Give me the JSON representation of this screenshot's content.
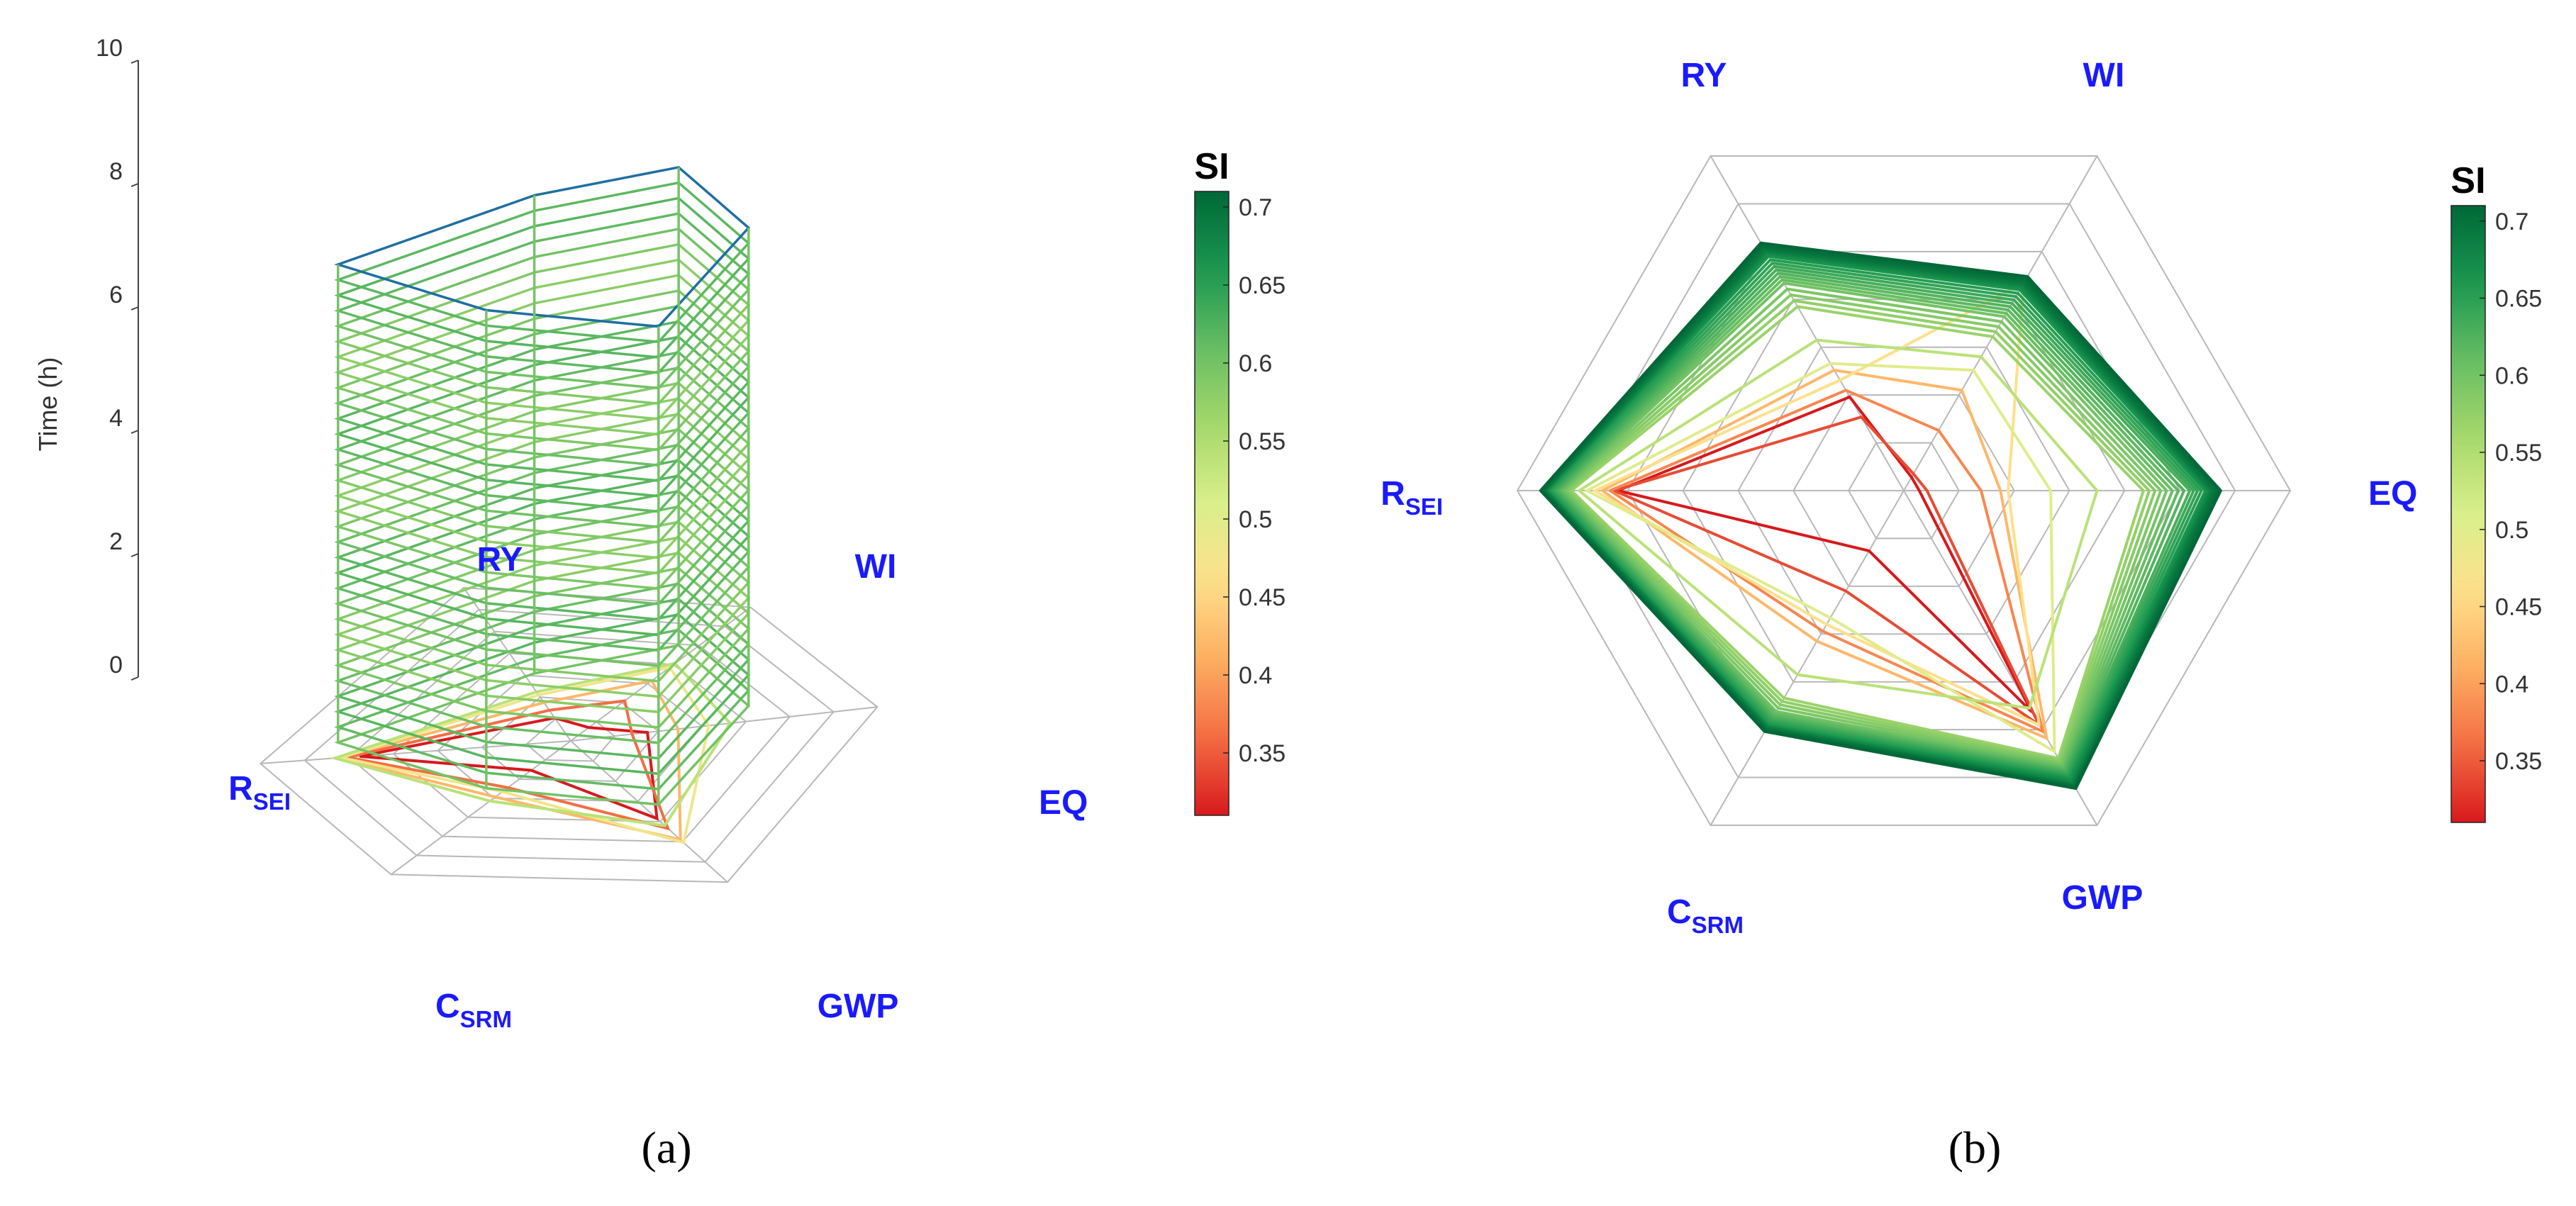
{
  "figure": {
    "panel_a_label": "(a)",
    "panel_b_label": "(b)"
  },
  "chart_data": [
    {
      "type": "radar-3d",
      "panel": "a",
      "title": "",
      "axes": [
        {
          "main": "RY",
          "sub": ""
        },
        {
          "main": "WI",
          "sub": ""
        },
        {
          "main": "EQ",
          "sub": ""
        },
        {
          "main": "GWP",
          "sub": ""
        },
        {
          "main": "C",
          "sub": "SRM"
        },
        {
          "main": "R",
          "sub": "SEI"
        }
      ],
      "zlabel": "Time (h)",
      "zticks": [
        "0",
        "2",
        "4",
        "6",
        "8",
        "10"
      ],
      "zlim": [
        0,
        10
      ],
      "rings": 7,
      "time_start": 0.25,
      "time_end": 8.0,
      "time_step": 0.25,
      "prism_profile": [
        0.34,
        0.6,
        0.58,
        0.56,
        0.47,
        0.75
      ],
      "colorbar": {
        "label": "SI",
        "ticks": [
          "0.35",
          "0.4",
          "0.45",
          "0.5",
          "0.55",
          "0.6",
          "0.65",
          "0.7"
        ],
        "range": [
          0.31,
          0.71
        ]
      },
      "colormap": [
        "#d7191c",
        "#f46d43",
        "#fdae61",
        "#fee08b",
        "#d9ef8b",
        "#a6d96a",
        "#66bd63",
        "#1a9850",
        "#006837"
      ]
    },
    {
      "type": "radar",
      "panel": "b",
      "title": "",
      "axes": [
        {
          "main": "RY",
          "sub": ""
        },
        {
          "main": "WI",
          "sub": ""
        },
        {
          "main": "EQ",
          "sub": ""
        },
        {
          "main": "GWP",
          "sub": ""
        },
        {
          "main": "C",
          "sub": "SRM"
        },
        {
          "main": "R",
          "sub": "SEI"
        }
      ],
      "rlim": [
        0,
        1
      ],
      "rings": 7,
      "profiles": [
        {
          "si": 0.31,
          "values": [
            0.28,
            0.04,
            0.04,
            0.66,
            0.18,
            0.74
          ]
        },
        {
          "si": 0.34,
          "values": [
            0.22,
            0.05,
            0.06,
            0.7,
            0.3,
            0.75
          ]
        },
        {
          "si": 0.38,
          "values": [
            0.3,
            0.18,
            0.2,
            0.72,
            0.42,
            0.76
          ]
        },
        {
          "si": 0.42,
          "values": [
            0.36,
            0.3,
            0.25,
            0.74,
            0.45,
            0.78
          ]
        },
        {
          "si": 0.46,
          "values": [
            0.33,
            0.62,
            0.27,
            0.7,
            0.4,
            0.8
          ]
        },
        {
          "si": 0.5,
          "values": [
            0.38,
            0.36,
            0.38,
            0.78,
            0.38,
            0.82
          ]
        },
        {
          "si": 0.54,
          "values": [
            0.45,
            0.4,
            0.5,
            0.65,
            0.55,
            0.84
          ]
        },
        {
          "si": 0.57,
          "values": [
            0.55,
            0.46,
            0.62,
            0.8,
            0.62,
            0.86
          ]
        },
        {
          "si": 0.6,
          "values": [
            0.62,
            0.52,
            0.68,
            0.82,
            0.66,
            0.88
          ]
        },
        {
          "si": 0.63,
          "values": [
            0.66,
            0.56,
            0.74,
            0.84,
            0.68,
            0.9
          ]
        },
        {
          "si": 0.66,
          "values": [
            0.7,
            0.6,
            0.78,
            0.86,
            0.7,
            0.92
          ]
        },
        {
          "si": 0.69,
          "values": [
            0.72,
            0.62,
            0.8,
            0.88,
            0.71,
            0.93
          ]
        },
        {
          "si": 0.71,
          "values": [
            0.74,
            0.64,
            0.82,
            0.89,
            0.72,
            0.94
          ]
        }
      ],
      "colorbar": {
        "label": "SI",
        "ticks": [
          "0.35",
          "0.4",
          "0.45",
          "0.5",
          "0.55",
          "0.6",
          "0.65",
          "0.7"
        ],
        "range": [
          0.31,
          0.71
        ]
      },
      "colormap": [
        "#d7191c",
        "#f46d43",
        "#fdae61",
        "#fee08b",
        "#d9ef8b",
        "#a6d96a",
        "#66bd63",
        "#1a9850",
        "#006837"
      ]
    }
  ]
}
